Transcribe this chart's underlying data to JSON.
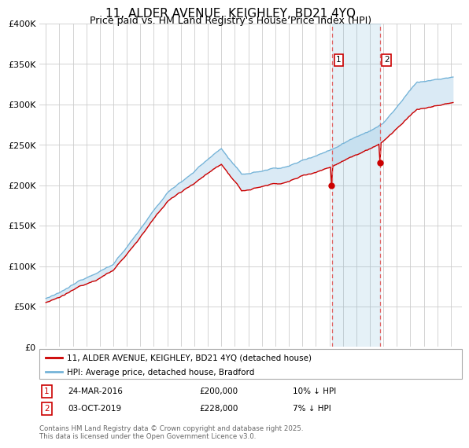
{
  "title": "11, ALDER AVENUE, KEIGHLEY, BD21 4YQ",
  "subtitle": "Price paid vs. HM Land Registry's House Price Index (HPI)",
  "legend_entry1": "11, ALDER AVENUE, KEIGHLEY, BD21 4YQ (detached house)",
  "legend_entry2": "HPI: Average price, detached house, Bradford",
  "annotation1_label": "1",
  "annotation1_date": "24-MAR-2016",
  "annotation1_price": "£200,000",
  "annotation1_hpi": "10% ↓ HPI",
  "annotation2_label": "2",
  "annotation2_date": "03-OCT-2019",
  "annotation2_price": "£228,000",
  "annotation2_hpi": "7% ↓ HPI",
  "footer": "Contains HM Land Registry data © Crown copyright and database right 2025.\nThis data is licensed under the Open Government Licence v3.0.",
  "line1_color": "#cc0000",
  "line2_color": "#74b3d8",
  "shade_color": "#daeaf5",
  "vline_color": "#e06060",
  "point_color": "#cc0000",
  "annotation_box_color": "#cc0000",
  "bg_color": "#ffffff",
  "grid_color": "#cccccc",
  "ylim": [
    0,
    400000
  ],
  "sale1_t": 2016.208,
  "sale2_t": 2019.75,
  "sale1_price": 200000,
  "sale2_price": 228000,
  "start_year": 1995,
  "end_year": 2025,
  "end_month": 3
}
